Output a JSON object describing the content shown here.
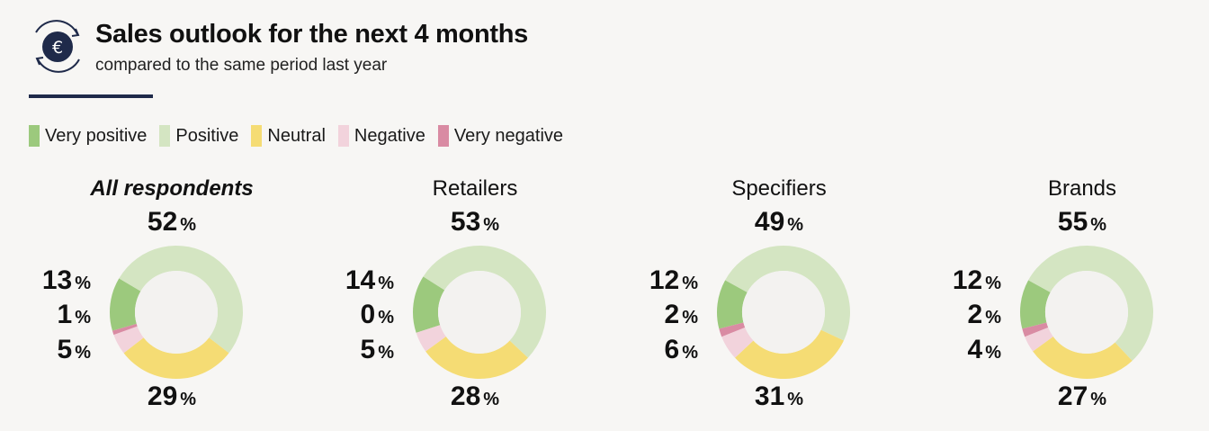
{
  "title": "Sales outlook for the next 4 months",
  "subtitle": "compared to the same period last year",
  "logo_icon": "euro-cycle-icon",
  "colors": {
    "very_positive": "#9cc97d",
    "positive": "#d4e5c2",
    "neutral": "#f5dc74",
    "negative": "#f2d3dc",
    "very_negative": "#d98ba3",
    "inner": "#f3f2f0",
    "navy": "#1f2a4a"
  },
  "legend": [
    {
      "label": "Very positive",
      "color": "#9cc97d"
    },
    {
      "label": "Positive",
      "color": "#d4e5c2"
    },
    {
      "label": "Neutral",
      "color": "#f5dc74"
    },
    {
      "label": "Negative",
      "color": "#f2d3dc"
    },
    {
      "label": "Very negative",
      "color": "#d98ba3"
    }
  ],
  "unit": "%",
  "chart_data": [
    {
      "type": "pie",
      "title": "All respondents",
      "categories": [
        "Very positive",
        "Positive",
        "Neutral",
        "Negative",
        "Very negative"
      ],
      "values": [
        13,
        52,
        29,
        5,
        1
      ],
      "labels": {
        "positive": "52",
        "very_positive": "13",
        "very_negative": "1",
        "negative": "5",
        "neutral": "29"
      }
    },
    {
      "type": "pie",
      "title": "Retailers",
      "categories": [
        "Very positive",
        "Positive",
        "Neutral",
        "Negative",
        "Very negative"
      ],
      "values": [
        14,
        53,
        28,
        5,
        0
      ],
      "labels": {
        "positive": "53",
        "very_positive": "14",
        "very_negative": "0",
        "negative": "5",
        "neutral": "28"
      }
    },
    {
      "type": "pie",
      "title": "Specifiers",
      "categories": [
        "Very positive",
        "Positive",
        "Neutral",
        "Negative",
        "Very negative"
      ],
      "values": [
        12,
        49,
        31,
        6,
        2
      ],
      "labels": {
        "positive": "49",
        "very_positive": "12",
        "very_negative": "2",
        "negative": "6",
        "neutral": "31"
      }
    },
    {
      "type": "pie",
      "title": "Brands",
      "categories": [
        "Very positive",
        "Positive",
        "Neutral",
        "Negative",
        "Very negative"
      ],
      "values": [
        12,
        55,
        27,
        4,
        2
      ],
      "labels": {
        "positive": "55",
        "very_positive": "12",
        "very_negative": "2",
        "negative": "4",
        "neutral": "27"
      }
    }
  ]
}
